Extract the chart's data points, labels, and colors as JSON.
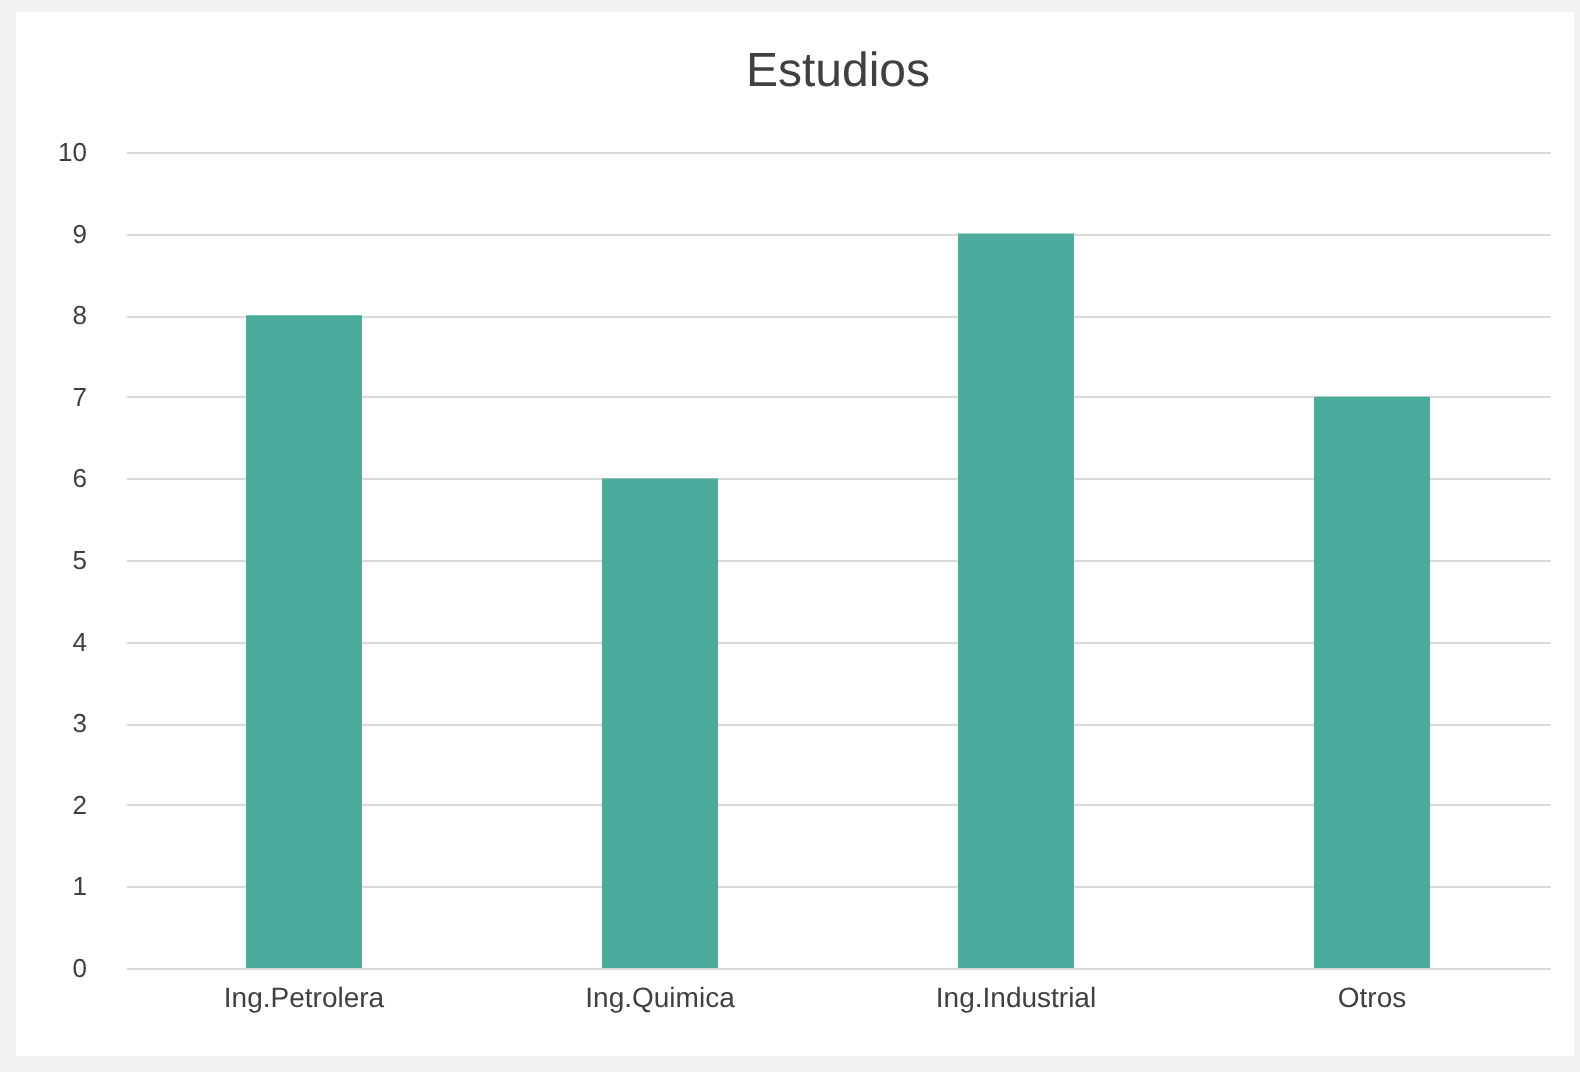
{
  "chart_data": {
    "type": "bar",
    "title": "Estudios",
    "categories": [
      "Ing.Petrolera",
      "Ing.Quimica",
      "Ing.Industrial",
      "Otros"
    ],
    "values": [
      8,
      6,
      9,
      7
    ],
    "color": "#4bab9c",
    "ylim": [
      0,
      10
    ],
    "yticks": [
      0,
      1,
      2,
      3,
      4,
      5,
      6,
      7,
      8,
      9,
      10
    ],
    "grid": "y"
  }
}
